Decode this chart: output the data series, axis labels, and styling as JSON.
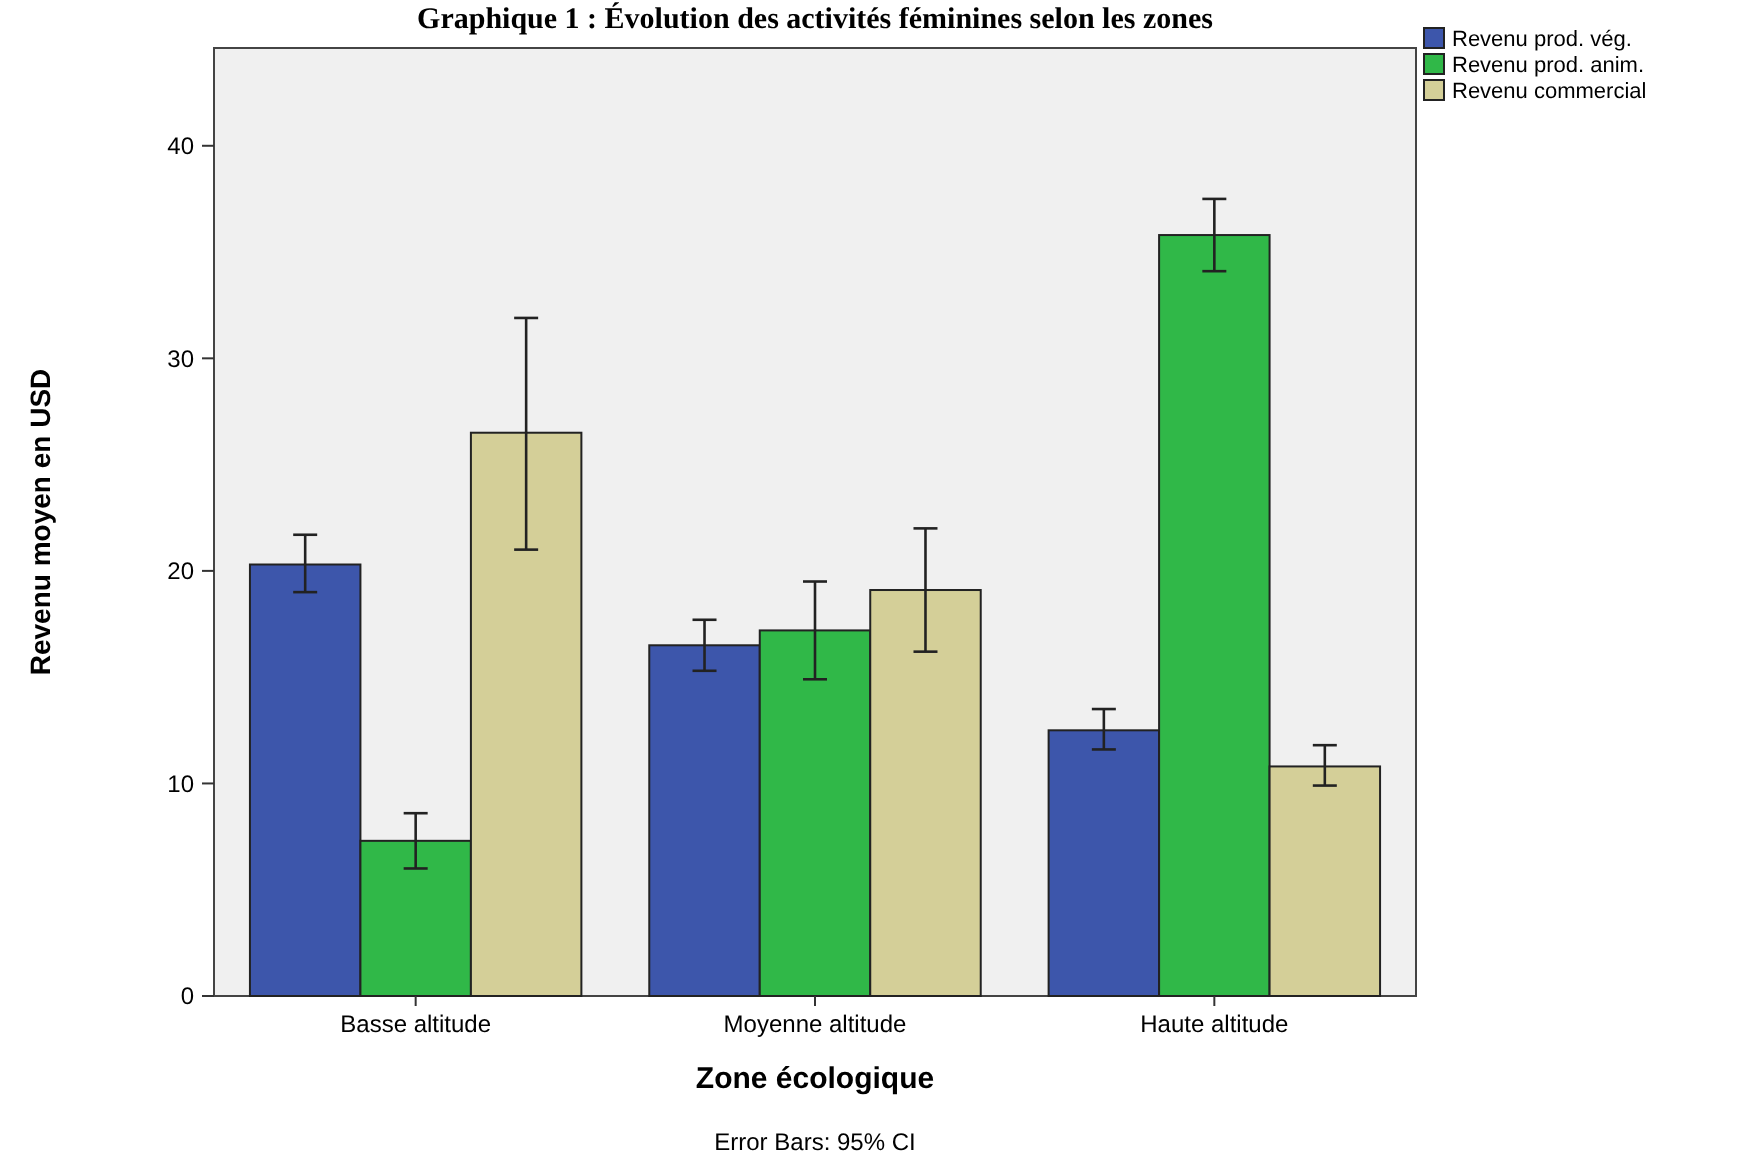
{
  "chart_data": {
    "type": "bar",
    "title": "Graphique 1 : Évolution des activités féminines selon les zones",
    "xlabel": "Zone écologique",
    "ylabel": "Revenu moyen en USD",
    "categories": [
      "Basse altitude",
      "Moyenne altitude",
      "Haute altitude"
    ],
    "series": [
      {
        "name": "Revenu prod. vég.",
        "color": "#3d56ab",
        "values": [
          20.3,
          16.5,
          12.5
        ],
        "errors": [
          [
            19.0,
            21.7
          ],
          [
            15.3,
            17.7
          ],
          [
            11.6,
            13.5
          ]
        ]
      },
      {
        "name": "Revenu prod. anim.",
        "color": "#30b848",
        "values": [
          7.3,
          17.2,
          35.8
        ],
        "errors": [
          [
            6.0,
            8.6
          ],
          [
            14.9,
            19.5
          ],
          [
            34.1,
            37.5
          ]
        ]
      },
      {
        "name": "Revenu commercial",
        "color": "#d4cf98",
        "values": [
          26.5,
          19.1,
          10.8
        ],
        "errors": [
          [
            21.0,
            31.9
          ],
          [
            16.2,
            22.0
          ],
          [
            9.9,
            11.8
          ]
        ]
      }
    ],
    "ylim": [
      0,
      44.6
    ],
    "yticks": [
      0,
      10,
      20,
      30,
      40
    ],
    "legend": "top right",
    "annotations": [
      "Error Bars: 95% CI"
    ]
  }
}
